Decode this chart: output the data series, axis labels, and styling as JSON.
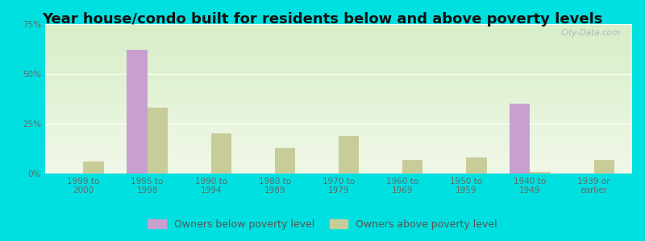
{
  "title": "Year house/condo built for residents below and above poverty levels",
  "categories": [
    "1999 to\n2000",
    "1995 to\n1998",
    "1990 to\n1994",
    "1980 to\n1989",
    "1970 to\n1979",
    "1960 to\n1969",
    "1950 to\n1959",
    "1940 to\n1949",
    "1939 or\nearlier"
  ],
  "below_poverty": [
    0.0,
    62.0,
    0.0,
    0.0,
    0.0,
    0.0,
    0.0,
    35.0,
    0.0
  ],
  "above_poverty": [
    6.0,
    33.0,
    20.0,
    13.0,
    19.0,
    7.0,
    8.0,
    1.0,
    7.0
  ],
  "below_color": "#c8a0d0",
  "above_color": "#c8cc98",
  "plot_bg_top": "#d8eec8",
  "plot_bg_bottom": "#f0f8e8",
  "outer_background": "#00e0e0",
  "inner_background": "#f0f8ec",
  "ylim": [
    0,
    75
  ],
  "yticks": [
    0,
    25,
    50,
    75
  ],
  "ytick_labels": [
    "0%",
    "25%",
    "50%",
    "75%"
  ],
  "bar_width": 0.32,
  "legend_below_label": "Owners below poverty level",
  "legend_above_label": "Owners above poverty level",
  "title_fontsize": 13,
  "tick_fontsize": 7.5,
  "legend_fontsize": 9
}
